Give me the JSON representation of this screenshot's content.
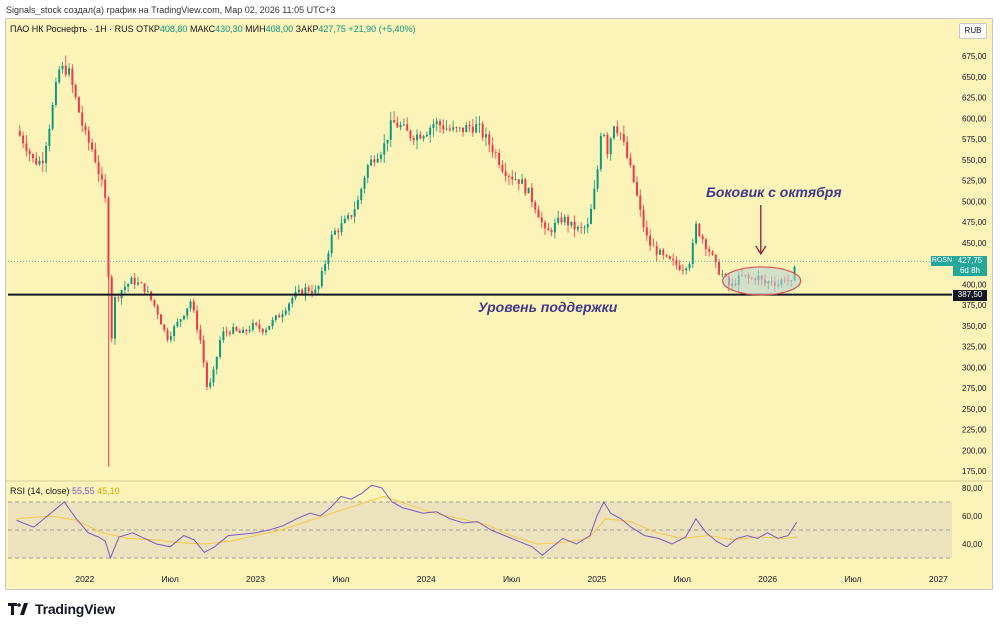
{
  "credit": "Signals_stock создал(а) график на TradingView.com, Мар 02, 2026 11:05 UTC+3",
  "legend": {
    "symbol": "ПАО НК Роснефть · 1Н · RUS",
    "open_label": "ОТКР",
    "open": "408,80",
    "high_label": "МАКС",
    "high": "430,30",
    "low_label": "МИН",
    "low": "408,00",
    "close_label": "ЗАКР",
    "close": "427,75",
    "change": "+21,90 (+5,40%)"
  },
  "currency": "RUB",
  "rsi_legend": {
    "label": "RSI (14, close)",
    "rsi_value": "55,55",
    "ma_value": "45,10"
  },
  "price_tag": {
    "ticker": "ROSN",
    "price": "427,75",
    "countdown": "6d 8h"
  },
  "support_tag": {
    "price": "387,50"
  },
  "annotations": {
    "sideways": "Боковик с октября",
    "support": "Уровень поддержки"
  },
  "logo": {
    "text": "TradingView",
    "icon": "tradingview-logo-icon"
  },
  "colors": {
    "background": "#fcf3b9",
    "up": "#089981",
    "down": "#f23645",
    "rsi_line": "#7e57c2",
    "rsi_ma": "#f2c94c",
    "support_line": "#131722",
    "annotation": "#3f3a8c",
    "ellipse_stroke": "#d9534f",
    "ellipse_fill": "#b8d4d4"
  },
  "chart_data": [
    {
      "type": "candlestick",
      "title": "",
      "x_ticks": [
        "2022",
        "Июл",
        "2023",
        "Июл",
        "2024",
        "Июл",
        "2025",
        "Июл",
        "2026",
        "Июл",
        "2027"
      ],
      "y_ticks": [
        "675,00",
        "650,00",
        "625,00",
        "600,00",
        "575,00",
        "550,00",
        "525,00",
        "500,00",
        "475,00",
        "450,00",
        "425,00",
        "400,00",
        "375,00",
        "350,00",
        "325,00",
        "300,00",
        "275,00",
        "250,00",
        "225,00",
        "200,00",
        "175,00"
      ],
      "ylim": [
        165,
        695
      ],
      "support_level": 387.5,
      "last_price": 427.75,
      "series": [
        {
          "name": "ROSN",
          "close_path": [
            [
              2021.6,
              585
            ],
            [
              2021.65,
              570
            ],
            [
              2021.7,
              548
            ],
            [
              2021.75,
              548
            ],
            [
              2021.8,
              600
            ],
            [
              2021.85,
              658
            ],
            [
              2021.9,
              660
            ],
            [
              2021.95,
              620
            ],
            [
              2022.0,
              580
            ],
            [
              2022.05,
              560
            ],
            [
              2022.1,
              520
            ],
            [
              2022.13,
              490
            ],
            [
              2022.15,
              310
            ],
            [
              2022.17,
              380
            ],
            [
              2022.22,
              395
            ],
            [
              2022.28,
              405
            ],
            [
              2022.35,
              395
            ],
            [
              2022.42,
              370
            ],
            [
              2022.48,
              335
            ],
            [
              2022.55,
              355
            ],
            [
              2022.62,
              380
            ],
            [
              2022.68,
              330
            ],
            [
              2022.72,
              270
            ],
            [
              2022.75,
              290
            ],
            [
              2022.8,
              340
            ],
            [
              2022.86,
              345
            ],
            [
              2022.92,
              340
            ],
            [
              2022.98,
              350
            ],
            [
              2023.05,
              345
            ],
            [
              2023.1,
              355
            ],
            [
              2023.15,
              365
            ],
            [
              2023.22,
              385
            ],
            [
              2023.3,
              395
            ],
            [
              2023.36,
              390
            ],
            [
              2023.4,
              420
            ],
            [
              2023.45,
              460
            ],
            [
              2023.5,
              470
            ],
            [
              2023.55,
              480
            ],
            [
              2023.6,
              500
            ],
            [
              2023.65,
              540
            ],
            [
              2023.7,
              555
            ],
            [
              2023.75,
              565
            ],
            [
              2023.8,
              595
            ],
            [
              2023.85,
              590
            ],
            [
              2023.9,
              580
            ],
            [
              2023.95,
              580
            ],
            [
              2024.0,
              585
            ],
            [
              2024.05,
              595
            ],
            [
              2024.1,
              590
            ],
            [
              2024.15,
              585
            ],
            [
              2024.2,
              585
            ],
            [
              2024.25,
              590
            ],
            [
              2024.3,
              590
            ],
            [
              2024.35,
              575
            ],
            [
              2024.4,
              560
            ],
            [
              2024.45,
              540
            ],
            [
              2024.5,
              530
            ],
            [
              2024.55,
              525
            ],
            [
              2024.6,
              510
            ],
            [
              2024.65,
              490
            ],
            [
              2024.7,
              460
            ],
            [
              2024.75,
              470
            ],
            [
              2024.8,
              480
            ],
            [
              2024.85,
              470
            ],
            [
              2024.9,
              465
            ],
            [
              2024.95,
              470
            ],
            [
              2025.0,
              530
            ],
            [
              2025.03,
              600
            ],
            [
              2025.06,
              560
            ],
            [
              2025.1,
              595
            ],
            [
              2025.14,
              580
            ],
            [
              2025.18,
              550
            ],
            [
              2025.22,
              520
            ],
            [
              2025.26,
              480
            ],
            [
              2025.3,
              450
            ],
            [
              2025.35,
              440
            ],
            [
              2025.4,
              430
            ],
            [
              2025.45,
              425
            ],
            [
              2025.5,
              420
            ],
            [
              2025.55,
              430
            ],
            [
              2025.58,
              470
            ],
            [
              2025.62,
              455
            ],
            [
              2025.66,
              440
            ],
            [
              2025.7,
              420
            ],
            [
              2025.74,
              410
            ],
            [
              2025.78,
              395
            ],
            [
              2025.82,
              405
            ],
            [
              2025.86,
              410
            ],
            [
              2025.9,
              405
            ],
            [
              2025.94,
              410
            ],
            [
              2025.98,
              400
            ],
            [
              2026.02,
              405
            ],
            [
              2026.06,
              400
            ],
            [
              2026.1,
              408
            ],
            [
              2026.14,
              400
            ],
            [
              2026.17,
              427.75
            ]
          ]
        }
      ]
    },
    {
      "type": "line",
      "title": "",
      "y_ticks": [
        "80,00",
        "60,00",
        "40,00"
      ],
      "ylim": [
        30,
        85
      ],
      "bands": [
        30,
        50,
        70
      ],
      "series": [
        {
          "name": "",
          "values": [
            [
              2021.6,
              57
            ],
            [
              2021.7,
              52
            ],
            [
              2021.8,
              62
            ],
            [
              2021.88,
              70
            ],
            [
              2021.95,
              58
            ],
            [
              2022.02,
              48
            ],
            [
              2022.08,
              45
            ],
            [
              2022.12,
              42
            ],
            [
              2022.15,
              30
            ],
            [
              2022.2,
              45
            ],
            [
              2022.28,
              48
            ],
            [
              2022.35,
              44
            ],
            [
              2022.42,
              40
            ],
            [
              2022.5,
              38
            ],
            [
              2022.58,
              46
            ],
            [
              2022.64,
              43
            ],
            [
              2022.7,
              34
            ],
            [
              2022.76,
              38
            ],
            [
              2022.84,
              46
            ],
            [
              2022.92,
              47
            ],
            [
              2023.0,
              48
            ],
            [
              2023.08,
              50
            ],
            [
              2023.16,
              53
            ],
            [
              2023.24,
              58
            ],
            [
              2023.32,
              62
            ],
            [
              2023.38,
              60
            ],
            [
              2023.44,
              66
            ],
            [
              2023.5,
              74
            ],
            [
              2023.56,
              72
            ],
            [
              2023.62,
              76
            ],
            [
              2023.68,
              82
            ],
            [
              2023.74,
              80
            ],
            [
              2023.8,
              70
            ],
            [
              2023.86,
              66
            ],
            [
              2023.92,
              64
            ],
            [
              2023.98,
              62
            ],
            [
              2024.06,
              63
            ],
            [
              2024.14,
              58
            ],
            [
              2024.22,
              55
            ],
            [
              2024.3,
              56
            ],
            [
              2024.38,
              50
            ],
            [
              2024.46,
              46
            ],
            [
              2024.54,
              42
            ],
            [
              2024.62,
              38
            ],
            [
              2024.68,
              32
            ],
            [
              2024.72,
              36
            ],
            [
              2024.8,
              44
            ],
            [
              2024.88,
              40
            ],
            [
              2024.96,
              46
            ],
            [
              2025.0,
              60
            ],
            [
              2025.04,
              70
            ],
            [
              2025.08,
              62
            ],
            [
              2025.14,
              58
            ],
            [
              2025.2,
              52
            ],
            [
              2025.28,
              46
            ],
            [
              2025.36,
              44
            ],
            [
              2025.44,
              40
            ],
            [
              2025.52,
              45
            ],
            [
              2025.58,
              58
            ],
            [
              2025.64,
              48
            ],
            [
              2025.7,
              42
            ],
            [
              2025.76,
              38
            ],
            [
              2025.82,
              44
            ],
            [
              2025.88,
              46
            ],
            [
              2025.94,
              44
            ],
            [
              2026.0,
              48
            ],
            [
              2026.06,
              44
            ],
            [
              2026.12,
              46
            ],
            [
              2026.17,
              55.55
            ]
          ]
        },
        {
          "name": "",
          "values": [
            [
              2021.6,
              58
            ],
            [
              2021.8,
              60
            ],
            [
              2021.95,
              57
            ],
            [
              2022.1,
              48
            ],
            [
              2022.25,
              44
            ],
            [
              2022.4,
              43
            ],
            [
              2022.55,
              41
            ],
            [
              2022.7,
              40
            ],
            [
              2022.85,
              42
            ],
            [
              2023.0,
              46
            ],
            [
              2023.15,
              50
            ],
            [
              2023.3,
              56
            ],
            [
              2023.45,
              62
            ],
            [
              2023.6,
              68
            ],
            [
              2023.75,
              74
            ],
            [
              2023.9,
              68
            ],
            [
              2024.05,
              62
            ],
            [
              2024.2,
              58
            ],
            [
              2024.35,
              54
            ],
            [
              2024.5,
              46
            ],
            [
              2024.65,
              40
            ],
            [
              2024.8,
              41
            ],
            [
              2024.95,
              44
            ],
            [
              2025.05,
              58
            ],
            [
              2025.2,
              56
            ],
            [
              2025.35,
              48
            ],
            [
              2025.5,
              44
            ],
            [
              2025.65,
              46
            ],
            [
              2025.8,
              43
            ],
            [
              2025.95,
              45
            ],
            [
              2026.1,
              44
            ],
            [
              2026.17,
              45.1
            ]
          ]
        }
      ]
    }
  ]
}
